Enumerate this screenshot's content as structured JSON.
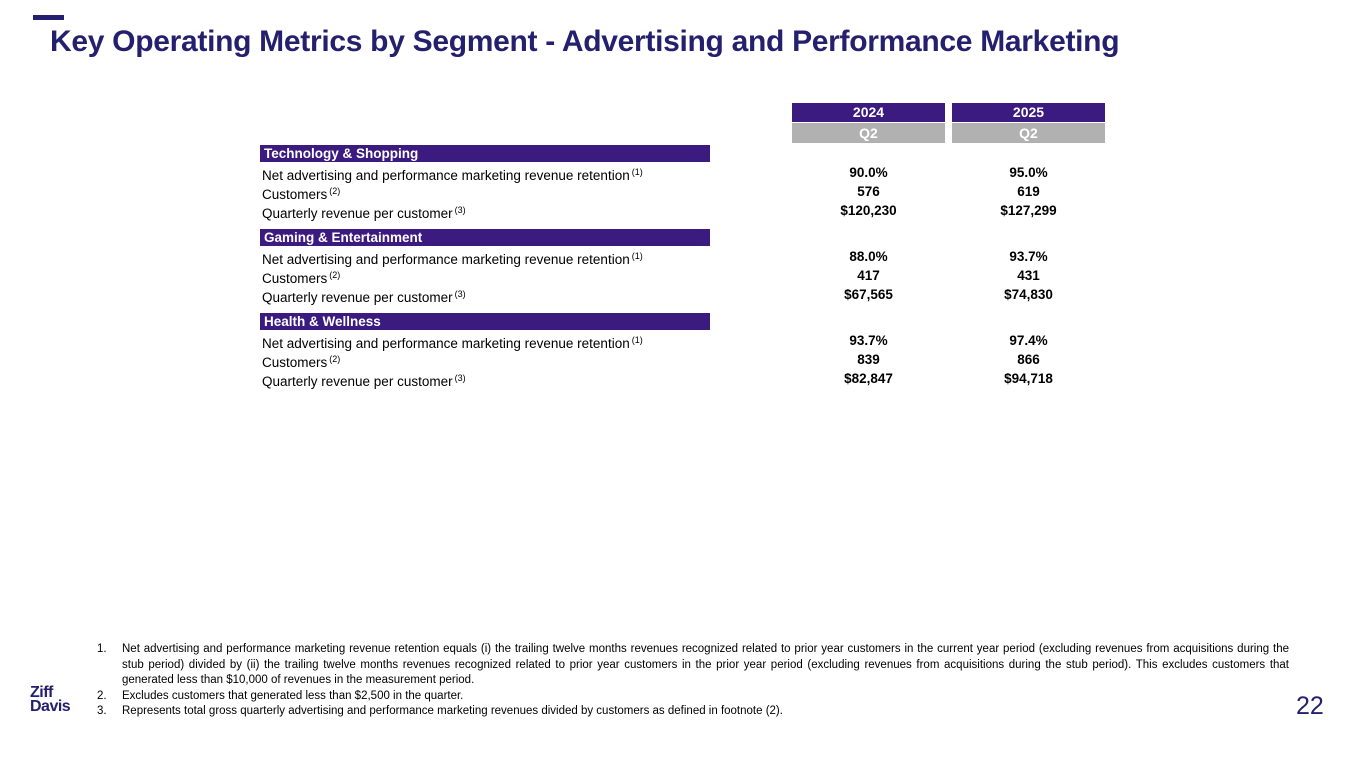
{
  "slide": {
    "title": "Key Operating Metrics by Segment - Advertising and Performance Marketing",
    "page_number": "22",
    "logo": {
      "line1": "Ziff",
      "line2": "Davis"
    }
  },
  "colors": {
    "brand_purple": "#3b1b80",
    "title_purple": "#24206e",
    "header_gray": "#b1b1b1"
  },
  "table": {
    "columns": [
      {
        "year": "2024",
        "quarter": "Q2"
      },
      {
        "year": "2025",
        "quarter": "Q2"
      }
    ],
    "segments": [
      {
        "name": "Technology & Shopping",
        "rows": [
          {
            "label": "Net advertising and performance marketing revenue retention",
            "footnote": "(1)",
            "values": [
              "90.0%",
              "95.0%"
            ]
          },
          {
            "label": "Customers",
            "footnote": "(2)",
            "values": [
              "576",
              "619"
            ]
          },
          {
            "label": "Quarterly revenue per customer",
            "footnote": "(3)",
            "values": [
              "$120,230",
              "$127,299"
            ]
          }
        ]
      },
      {
        "name": "Gaming & Entertainment",
        "rows": [
          {
            "label": "Net advertising and performance marketing revenue retention",
            "footnote": "(1)",
            "values": [
              "88.0%",
              "93.7%"
            ]
          },
          {
            "label": "Customers",
            "footnote": "(2)",
            "values": [
              "417",
              "431"
            ]
          },
          {
            "label": "Quarterly revenue per customer",
            "footnote": "(3)",
            "values": [
              "$67,565",
              "$74,830"
            ]
          }
        ]
      },
      {
        "name": "Health & Wellness",
        "rows": [
          {
            "label": "Net advertising and performance marketing revenue retention",
            "footnote": "(1)",
            "values": [
              "93.7%",
              "97.4%"
            ]
          },
          {
            "label": "Customers",
            "footnote": "(2)",
            "values": [
              "839",
              "866"
            ]
          },
          {
            "label": "Quarterly revenue per customer",
            "footnote": "(3)",
            "values": [
              "$82,847",
              "$94,718"
            ]
          }
        ]
      }
    ]
  },
  "footnotes": [
    {
      "num": "1.",
      "text": "Net advertising and performance marketing revenue retention equals (i) the trailing twelve months revenues recognized related to prior year customers in the current year period (excluding revenues from acquisitions during the stub period) divided by (ii) the trailing twelve months revenues recognized related to prior year customers in the prior year period (excluding revenues from acquisitions during the stub period). This excludes customers that generated less than $10,000 of revenues in the measurement period."
    },
    {
      "num": "2.",
      "text": "Excludes customers that generated less than $2,500 in the quarter."
    },
    {
      "num": "3.",
      "text": "Represents total gross quarterly advertising and performance marketing revenues divided by customers as defined in footnote (2)."
    }
  ]
}
